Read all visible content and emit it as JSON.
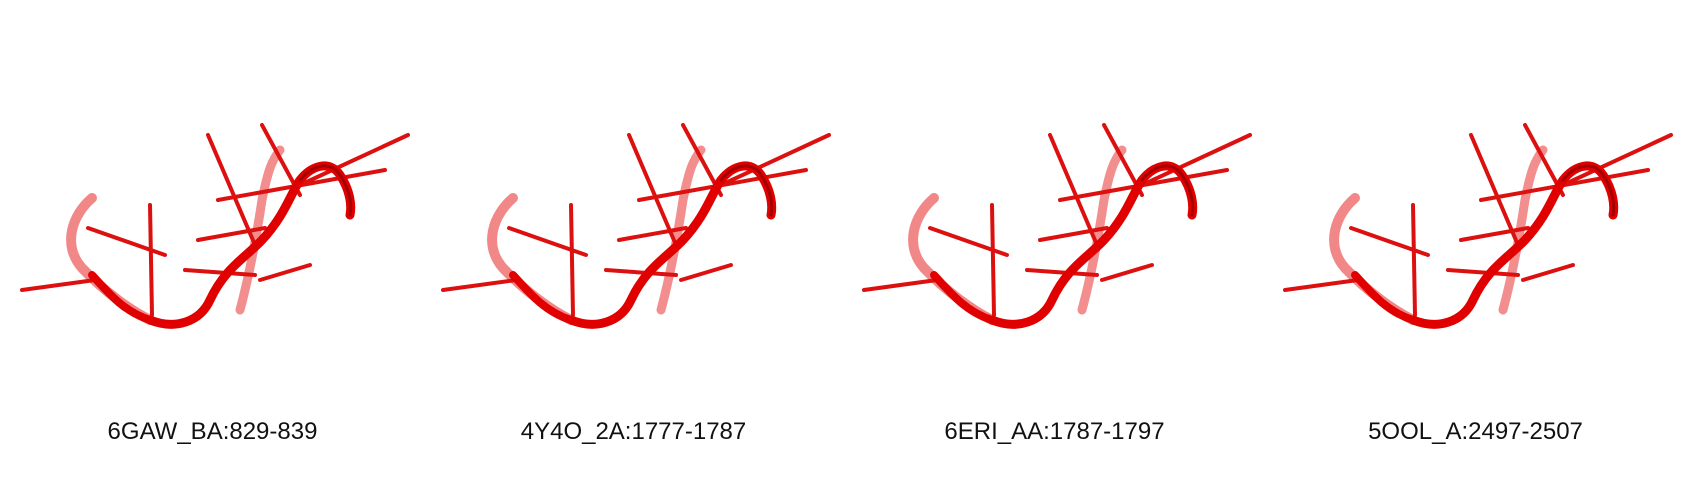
{
  "structures": [
    {
      "label": "6GAW_BA:829-839"
    },
    {
      "label": "4Y4O_2A:1777-1787"
    },
    {
      "label": "6ERI_AA:1787-1797"
    },
    {
      "label": "5OOL_A:2497-2507"
    }
  ],
  "colors": {
    "backbone": "#e00000",
    "backbone_dark": "#8a0000",
    "backbone_faded": "#f07a7a",
    "stick": "#dd1010"
  }
}
